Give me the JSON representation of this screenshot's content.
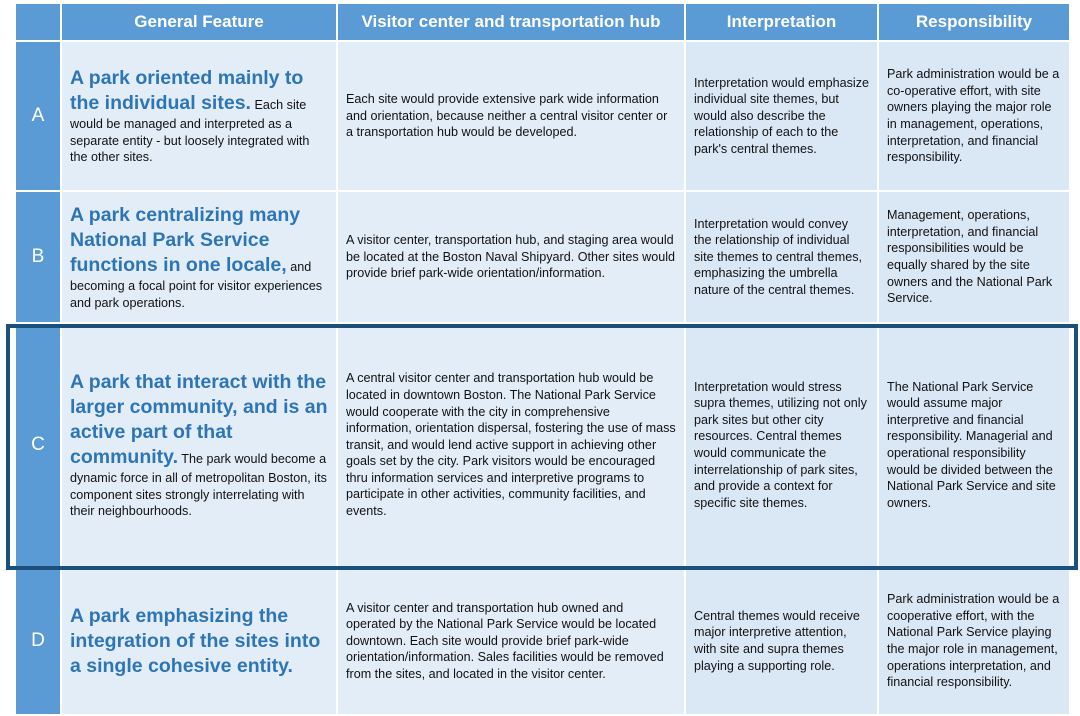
{
  "table": {
    "header": [
      "General Feature",
      "Visitor center and transportation hub",
      "Interpretation",
      "Responsibility"
    ],
    "rows": [
      {
        "label": "A",
        "feature_title": "A park oriented mainly to the individual sites.",
        "feature_text": "Each site would be managed and interpreted as a separate entity - but loosely integrated with the other sites.",
        "visitor": "Each site would provide extensive park wide information and orientation, because neither a central visitor center or a transportation hub would be developed.",
        "interpretation": "Interpretation would emphasize individual site themes, but would also describe the relationship of each to the park's central themes.",
        "responsibility": "Park administration would be a co-operative effort, with site owners playing the major role in management, operations, interpretation, and financial responsibility."
      },
      {
        "label": "B",
        "feature_title": "A park centralizing many National Park Service functions in one locale,",
        "feature_text": "and becoming a focal point for visitor experiences and park operations.",
        "visitor": "A visitor center, transportation hub, and staging area would be located at the Boston Naval Shipyard. Other sites would provide brief park-wide orientation/information.",
        "interpretation": "Interpretation would convey the relationship of individual site themes to central themes, emphasizing the umbrella nature of the central themes.",
        "responsibility": "Management, operations, interpretation, and financial responsibilities would be equally shared by the site owners and the National Park Service."
      },
      {
        "label": "C",
        "feature_title": "A park that interact with the larger community, and is an active part of that community.",
        "feature_text": "The park would become a dynamic force in all of metropolitan Boston, its component sites strongly interrelating with their neighbourhoods.",
        "visitor": "A central visitor center and transportation hub would be located in downtown Boston. The National Park Service would cooperate with the city in comprehensive information, orientation dispersal, fostering the use of mass transit, and would lend active support in achieving other goals set by the city. Park visitors would be encouraged thru information services and interpretive programs to participate in other activities, community facilities, and events.",
        "interpretation": "Interpretation would stress supra themes, utilizing not only park sites but other city resources. Central themes would communicate the interrelationship of park sites, and provide a context for specific site themes.",
        "responsibility": "The National Park Service would assume major interpretive and financial responsibility. Managerial and operational responsibility would be divided between the National Park Service and site owners."
      },
      {
        "label": "D",
        "feature_title": "A park emphasizing the integration of the sites into a single cohesive entity.",
        "visitor": "A visitor center and transportation hub owned and operated by the National Park Service would be located downtown. Each site would provide brief park-wide orientation/information. Sales facilities would be removed from the sites, and located in the visitor center.",
        "interpretation": "Central themes would receive major interpretive attention, with site and supra themes playing a supporting role.",
        "responsibility": "Park administration would be a cooperative effort, with the National Park Service playing the major role in management, operations interpretation, and financial responsibility."
      }
    ]
  }
}
